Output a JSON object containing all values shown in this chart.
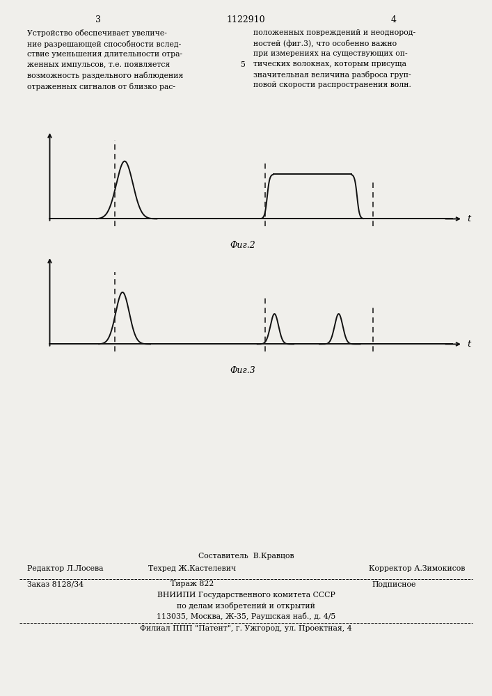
{
  "bg_color": "#f0efeb",
  "page_width": 7.07,
  "page_height": 10.0,
  "header_number": "1122910",
  "page_left": "3",
  "page_right": "4",
  "text_left": "Устройство обеспечивает увеличе-\nние разрешающей способности вслед-\nствие уменьшения длительности отра-\nженных импульсов, т.е. появляется\nвозможность раздельного наблюдения\nотраженных сигналов от близко рас-",
  "text_right": "положенных повреждений и неоднород-\nностей (фиг.3), что особенно важно\nпри измерениях на существующих оп-\nтических волокнах, которым присуща\nзначительная величина разброса груп-\nповой скорости распространения волн.",
  "text_right_number": "5",
  "fig2_label": "Фиг.2",
  "fig3_label": "Фиг.3",
  "line_color": "#111111",
  "dashed_color": "#111111",
  "footer_line0": "Составитель  В.Кравцов",
  "footer_line1_left": "Редактор Л.Лосева",
  "footer_line1_center": "Техред Ж.Кастелевич",
  "footer_line1_right": "Корректор А.Зимокисов",
  "footer_line2_left": "Заказ 8128/34",
  "footer_line2_center": "Тираж 822",
  "footer_line2_right": "Подписное",
  "footer_line3": "ВНИИПИ Государственного комитета СССР",
  "footer_line4": "по делам изобретений и открытий",
  "footer_line5": "113035, Москва, Ж-35, Раушская наб., д. 4/5",
  "footer_line6": "Филиал ППП \"Патент\", г. Ужгород, ул. Проектная, 4"
}
